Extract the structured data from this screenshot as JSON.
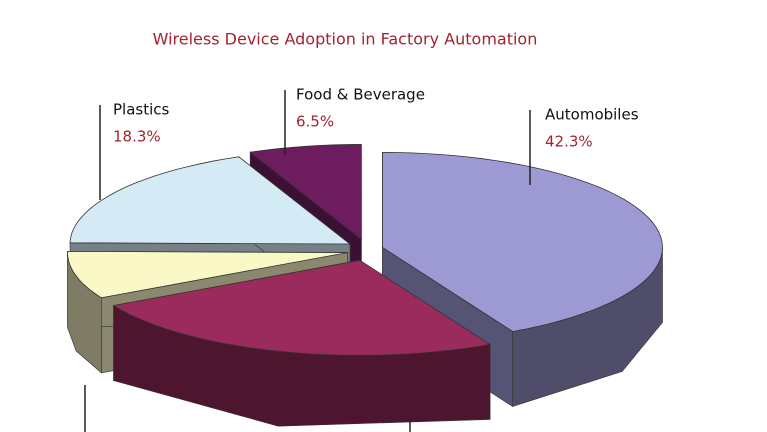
{
  "chart_data": {
    "type": "pie3d",
    "title": "Wireless Device Adoption in Factory Automation",
    "categories": [
      "Automobiles",
      null,
      null,
      "Plastics",
      "Food & Beverage"
    ],
    "values": [
      42.3,
      24.8,
      8.1,
      18.3,
      6.5
    ],
    "value_labels": [
      "42.3%",
      null,
      null,
      "18.3%",
      "6.5%"
    ],
    "colors": [
      "#9d99d2",
      "#9a2b5c",
      "#fbf8c8",
      "#d4eaf4",
      "#6d1c5f"
    ]
  }
}
